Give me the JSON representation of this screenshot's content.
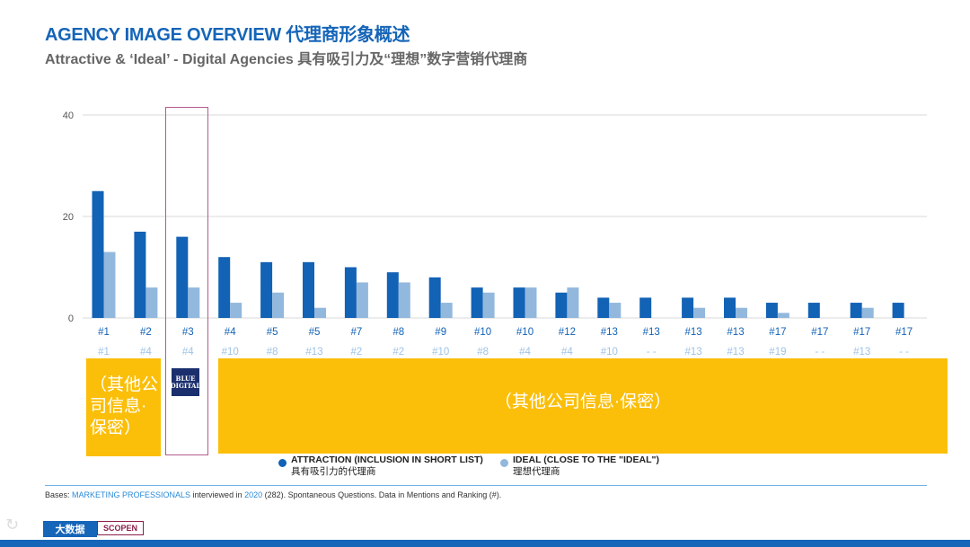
{
  "header": {
    "title": "AGENCY IMAGE OVERVIEW 代理商形象概述",
    "subtitle": "Attractive & ‘Ideal’ - Digital Agencies 具有吸引力及“理想”数字营销代理商"
  },
  "colors": {
    "attraction": "#1262b5",
    "ideal": "#93b8dd",
    "box": "#fbbf0a",
    "highlight_border": "#b45a8e",
    "accent": "#1565b8"
  },
  "chart_data": {
    "type": "bar",
    "yticks": [
      0,
      20,
      40
    ],
    "ylim": [
      0,
      40
    ],
    "grid": true,
    "categories": [
      "1",
      "2",
      "3",
      "4",
      "5",
      "6",
      "7",
      "8",
      "9",
      "10",
      "11",
      "12",
      "13",
      "14",
      "15",
      "16",
      "17",
      "18",
      "19",
      "20"
    ],
    "attraction_rank": [
      "#1",
      "#2",
      "#3",
      "#4",
      "#5",
      "#5",
      "#7",
      "#8",
      "#9",
      "#10",
      "#10",
      "#12",
      "#13",
      "#13",
      "#13",
      "#13",
      "#17",
      "#17",
      "#17",
      "#17"
    ],
    "ideal_rank": [
      "#1",
      "#4",
      "#4",
      "#10",
      "#8",
      "#13",
      "#2",
      "#2",
      "#10",
      "#8",
      "#4",
      "#4",
      "#10",
      "- -",
      "#13",
      "#13",
      "#19",
      "- -",
      "#13",
      "- -"
    ],
    "series": [
      {
        "name": "ATTRACTION (INCLUSION IN SHORT LIST) 具有吸引力的代理商",
        "values": [
          25,
          17,
          16,
          12,
          11,
          11,
          10,
          9,
          8,
          6,
          6,
          5,
          4,
          4,
          4,
          4,
          3,
          3,
          3,
          3
        ]
      },
      {
        "name": "IDEAL (CLOSE TO THE \"IDEAL\") 理想代理商",
        "values": [
          13,
          6,
          6,
          3,
          5,
          2,
          7,
          7,
          3,
          5,
          6,
          6,
          3,
          0,
          2,
          2,
          1,
          0,
          2,
          0
        ]
      }
    ],
    "highlight_index": 2
  },
  "boxes": {
    "left_text": "（其他公司信息·保密）",
    "right_text": "（其他公司信息·保密）"
  },
  "logo": {
    "line1": "BLUE",
    "line2": "DIGITAL"
  },
  "legend": {
    "attraction_en": "ATTRACTION (INCLUSION IN SHORT LIST)",
    "attraction_cn": "具有吸引力的代理商",
    "ideal_en": "IDEAL (CLOSE TO THE \"IDEAL\")",
    "ideal_cn": "理想代理商"
  },
  "bases": {
    "prefix": "Bases: ",
    "group": "MARKETING PROFESSIONALS",
    "middle": " interviewed in ",
    "year": "2020",
    "suffix": " (282). Spontaneous Questions. Data in Mentions and Ranking (#)."
  },
  "footer": {
    "logo_text": "大数据",
    "partner_text": "SCOPEN"
  }
}
